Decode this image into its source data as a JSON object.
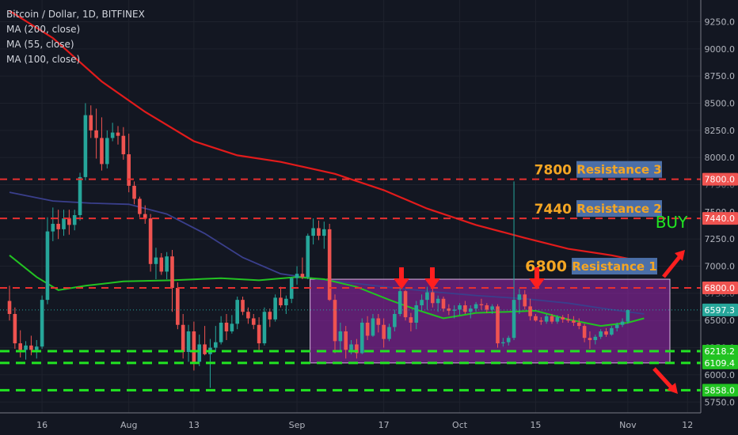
{
  "legend": {
    "title": "Bitcoin / Dollar, 1D, BITFINEX",
    "ma200": "MA (200, close)",
    "ma55": "MA (55, close)",
    "ma100": "MA (100, close)"
  },
  "colors": {
    "background": "#131722",
    "grid": "#1e222d",
    "up": "#26a69a",
    "down": "#ef5350",
    "ma200": "#e21b1b",
    "ma55": "#3a3f8c",
    "ma100": "#22c322",
    "range_box": "#9c27b0",
    "resistance_label_bg": "#4b6fa8",
    "resistance_label_text": "#f5a623",
    "support_line": "#22e522",
    "arrow": "#ff1f1f",
    "buy": "#22e522"
  },
  "chart_data": {
    "type": "candlestick",
    "y_axis": {
      "ticks": [
        "9250.0",
        "9000.0",
        "8750.0",
        "8500.0",
        "8250.0",
        "8000.0",
        "7750.0",
        "7500.0",
        "7250.0",
        "7000.0",
        "6750.0",
        "6500.0",
        "6250.0",
        "6000.0",
        "5750.0"
      ],
      "ylim": [
        5650,
        9450
      ]
    },
    "x_axis": {
      "ticks": [
        "16",
        "Aug",
        "13",
        "Sep",
        "17",
        "Oct",
        "15",
        "Nov",
        "12"
      ]
    },
    "price_labels": {
      "resistance_3": "7800.0",
      "resistance_2": "7440.0",
      "resistance_1": "6800.0",
      "current": "6597.3",
      "support_1": "6218.2",
      "support_2": "6109.4",
      "support_3": "5858.0"
    },
    "levels": [
      {
        "value": 7800,
        "price": "7800",
        "label": "Resistance 3",
        "color": "#ef5350"
      },
      {
        "value": 7440,
        "price": "7440",
        "label": "Resistance 2",
        "color": "#ef5350"
      },
      {
        "value": 6800,
        "price": "6800",
        "label": "Resistance 1",
        "color": "#ef5350"
      },
      {
        "value": 6218.2,
        "color": "#22e522"
      },
      {
        "value": 6109.4,
        "color": "#22e522"
      },
      {
        "value": 5858.0,
        "color": "#22e522"
      }
    ],
    "range_box": {
      "start_date": "2018-09-04",
      "end_date": "2018-11-07",
      "low": 6109.4,
      "high": 6880
    },
    "annotations": {
      "buy": "BUY"
    },
    "start_date": "2018-07-10",
    "candles": [
      [
        6680,
        6820,
        6500,
        6560
      ],
      [
        6560,
        6620,
        6240,
        6290
      ],
      [
        6290,
        6410,
        6160,
        6230
      ],
      [
        6230,
        6310,
        6140,
        6270
      ],
      [
        6270,
        6360,
        6180,
        6230
      ],
      [
        6230,
        6320,
        6150,
        6260
      ],
      [
        6260,
        6730,
        6240,
        6690
      ],
      [
        6690,
        7450,
        6650,
        7320
      ],
      [
        7320,
        7540,
        7230,
        7390
      ],
      [
        7390,
        7520,
        7250,
        7340
      ],
      [
        7340,
        7520,
        7280,
        7440
      ],
      [
        7440,
        7520,
        7290,
        7380
      ],
      [
        7380,
        7520,
        7330,
        7470
      ],
      [
        7470,
        7860,
        7420,
        7820
      ],
      [
        7820,
        8500,
        7790,
        8390
      ],
      [
        8390,
        8480,
        8180,
        8250
      ],
      [
        8250,
        8450,
        7990,
        8180
      ],
      [
        8180,
        8370,
        7880,
        7940
      ],
      [
        7940,
        8250,
        7900,
        8180
      ],
      [
        8180,
        8320,
        8150,
        8230
      ],
      [
        8230,
        8290,
        8120,
        8200
      ],
      [
        8200,
        8280,
        7980,
        8030
      ],
      [
        8030,
        8220,
        7680,
        7740
      ],
      [
        7740,
        7780,
        7570,
        7620
      ],
      [
        7620,
        7640,
        7450,
        7480
      ],
      [
        7480,
        7560,
        7390,
        7440
      ],
      [
        7440,
        7480,
        6950,
        7020
      ],
      [
        7020,
        7170,
        6880,
        7080
      ],
      [
        7080,
        7120,
        6920,
        6950
      ],
      [
        6950,
        7130,
        6880,
        7090
      ],
      [
        7090,
        7150,
        6580,
        6800
      ],
      [
        6800,
        6850,
        6420,
        6460
      ],
      [
        6460,
        6560,
        6150,
        6210
      ],
      [
        6210,
        6460,
        6120,
        6400
      ],
      [
        6400,
        6490,
        6040,
        6120
      ],
      [
        6120,
        6370,
        6080,
        6280
      ],
      [
        6280,
        6450,
        6180,
        6190
      ],
      [
        6190,
        6330,
        5880,
        6250
      ],
      [
        6250,
        6450,
        6210,
        6300
      ],
      [
        6300,
        6540,
        6280,
        6480
      ],
      [
        6480,
        6560,
        6320,
        6400
      ],
      [
        6400,
        6550,
        6380,
        6470
      ],
      [
        6470,
        6720,
        6420,
        6690
      ],
      [
        6690,
        6720,
        6550,
        6580
      ],
      [
        6580,
        6620,
        6470,
        6520
      ],
      [
        6520,
        6560,
        6420,
        6460
      ],
      [
        6460,
        6530,
        6230,
        6290
      ],
      [
        6290,
        6620,
        6270,
        6580
      ],
      [
        6580,
        6610,
        6440,
        6510
      ],
      [
        6510,
        6740,
        6490,
        6710
      ],
      [
        6710,
        6810,
        6620,
        6640
      ],
      [
        6640,
        6730,
        6560,
        6700
      ],
      [
        6700,
        6900,
        6660,
        6890
      ],
      [
        6890,
        7000,
        6830,
        6930
      ],
      [
        6930,
        7080,
        6880,
        6900
      ],
      [
        6900,
        7300,
        6880,
        7280
      ],
      [
        7280,
        7440,
        7200,
        7350
      ],
      [
        7350,
        7420,
        7240,
        7280
      ],
      [
        7280,
        7410,
        7160,
        7340
      ],
      [
        7340,
        7390,
        6680,
        6690
      ],
      [
        6690,
        6740,
        6200,
        6310
      ],
      [
        6310,
        6480,
        6220,
        6400
      ],
      [
        6400,
        6450,
        6150,
        6230
      ],
      [
        6230,
        6320,
        6190,
        6280
      ],
      [
        6280,
        6330,
        6150,
        6200
      ],
      [
        6200,
        6520,
        6190,
        6480
      ],
      [
        6480,
        6540,
        6320,
        6360
      ],
      [
        6360,
        6560,
        6350,
        6520
      ],
      [
        6520,
        6560,
        6390,
        6460
      ],
      [
        6460,
        6520,
        6250,
        6330
      ],
      [
        6330,
        6470,
        6310,
        6440
      ],
      [
        6440,
        6600,
        6400,
        6560
      ],
      [
        6560,
        6800,
        6540,
        6770
      ],
      [
        6770,
        6780,
        6500,
        6530
      ],
      [
        6530,
        6570,
        6400,
        6480
      ],
      [
        6480,
        6680,
        6420,
        6640
      ],
      [
        6640,
        6740,
        6590,
        6690
      ],
      [
        6690,
        6810,
        6600,
        6760
      ],
      [
        6760,
        6800,
        6620,
        6660
      ],
      [
        6660,
        6730,
        6580,
        6700
      ],
      [
        6700,
        6720,
        6580,
        6610
      ],
      [
        6610,
        6650,
        6550,
        6590
      ],
      [
        6590,
        6640,
        6520,
        6600
      ],
      [
        6600,
        6660,
        6550,
        6640
      ],
      [
        6640,
        6680,
        6560,
        6580
      ],
      [
        6580,
        6640,
        6520,
        6610
      ],
      [
        6610,
        6670,
        6580,
        6650
      ],
      [
        6650,
        6700,
        6600,
        6640
      ],
      [
        6640,
        6660,
        6570,
        6600
      ],
      [
        6600,
        6650,
        6560,
        6630
      ],
      [
        6630,
        6650,
        6250,
        6290
      ],
      [
        6290,
        6340,
        6260,
        6300
      ],
      [
        6300,
        6360,
        6270,
        6340
      ],
      [
        6340,
        7780,
        6320,
        6690
      ],
      [
        6690,
        6790,
        6560,
        6740
      ],
      [
        6740,
        6780,
        6600,
        6630
      ],
      [
        6630,
        6700,
        6500,
        6540
      ],
      [
        6540,
        6560,
        6490,
        6500
      ],
      [
        6500,
        6530,
        6460,
        6490
      ],
      [
        6490,
        6560,
        6470,
        6540
      ],
      [
        6540,
        6560,
        6470,
        6490
      ],
      [
        6490,
        6550,
        6470,
        6530
      ],
      [
        6530,
        6550,
        6480,
        6510
      ],
      [
        6510,
        6560,
        6480,
        6500
      ],
      [
        6500,
        6540,
        6450,
        6480
      ],
      [
        6480,
        6520,
        6420,
        6450
      ],
      [
        6450,
        6470,
        6300,
        6340
      ],
      [
        6340,
        6400,
        6240,
        6320
      ],
      [
        6320,
        6370,
        6280,
        6350
      ],
      [
        6350,
        6420,
        6330,
        6400
      ],
      [
        6400,
        6430,
        6350,
        6370
      ],
      [
        6370,
        6450,
        6360,
        6430
      ],
      [
        6430,
        6480,
        6400,
        6460
      ],
      [
        6460,
        6520,
        6440,
        6490
      ],
      [
        6490,
        6600,
        6470,
        6597.3
      ]
    ],
    "ma200": [
      [
        0,
        9350
      ],
      [
        8,
        9100
      ],
      [
        17,
        8700
      ],
      [
        25,
        8420
      ],
      [
        34,
        8150
      ],
      [
        42,
        8020
      ],
      [
        50,
        7960
      ],
      [
        60,
        7850
      ],
      [
        69,
        7700
      ],
      [
        77,
        7530
      ],
      [
        86,
        7380
      ],
      [
        95,
        7260
      ],
      [
        103,
        7160
      ],
      [
        111,
        7100
      ],
      [
        117,
        7040
      ]
    ],
    "ma55": [
      [
        0,
        7680
      ],
      [
        8,
        7600
      ],
      [
        15,
        7580
      ],
      [
        22,
        7570
      ],
      [
        29,
        7480
      ],
      [
        36,
        7300
      ],
      [
        43,
        7080
      ],
      [
        50,
        6930
      ],
      [
        57,
        6880
      ],
      [
        64,
        6840
      ],
      [
        71,
        6800
      ],
      [
        79,
        6760
      ],
      [
        86,
        6730
      ],
      [
        95,
        6700
      ],
      [
        103,
        6660
      ],
      [
        111,
        6600
      ],
      [
        117,
        6560
      ]
    ],
    "ma100": [
      [
        0,
        7100
      ],
      [
        5,
        6900
      ],
      [
        9,
        6780
      ],
      [
        14,
        6820
      ],
      [
        21,
        6860
      ],
      [
        30,
        6870
      ],
      [
        39,
        6890
      ],
      [
        46,
        6870
      ],
      [
        53,
        6900
      ],
      [
        58,
        6880
      ],
      [
        64,
        6810
      ],
      [
        70,
        6690
      ],
      [
        75,
        6600
      ],
      [
        80,
        6520
      ],
      [
        86,
        6570
      ],
      [
        92,
        6580
      ],
      [
        97,
        6590
      ],
      [
        103,
        6510
      ],
      [
        109,
        6450
      ],
      [
        114,
        6480
      ],
      [
        117,
        6520
      ]
    ],
    "arrow_up_count": 3
  }
}
